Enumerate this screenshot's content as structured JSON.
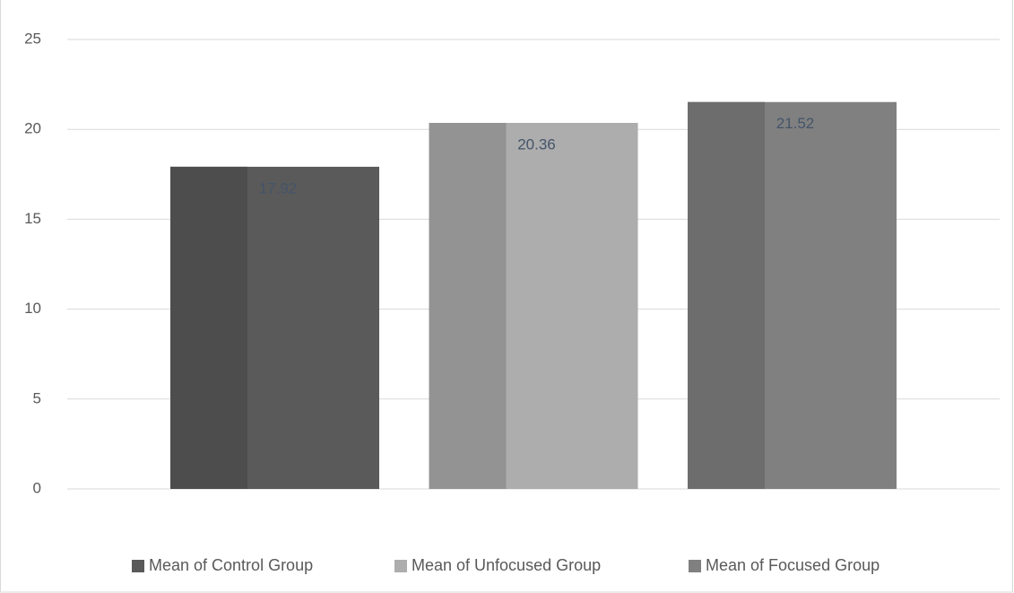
{
  "chart_data": {
    "type": "bar",
    "series": [
      {
        "name": "Mean of Control Group",
        "color": "#5a5a5a",
        "values": [
          17.92
        ]
      },
      {
        "name": "Mean of Unfocused Group",
        "color": "#adadad",
        "values": [
          20.36
        ]
      },
      {
        "name": "Mean of Focused Group",
        "color": "#808080",
        "values": [
          21.52
        ]
      }
    ],
    "ylim": [
      0,
      25
    ],
    "yticks": [
      0,
      5,
      10,
      15,
      20,
      25
    ],
    "grid": true,
    "legend": "bottom"
  }
}
